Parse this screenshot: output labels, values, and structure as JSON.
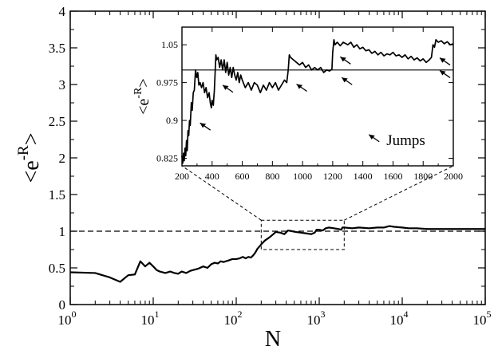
{
  "chart_data": [
    {
      "type": "line",
      "name": "main",
      "xlabel": "N",
      "ylabel_base": "<e",
      "ylabel_sup": "-R",
      "ylabel_end": ">",
      "x_scale": "log",
      "xlim": [
        1,
        100000
      ],
      "ylim": [
        0,
        4
      ],
      "x_ticks": [
        {
          "value": 1,
          "base": "10",
          "exp": "0"
        },
        {
          "value": 10,
          "base": "10",
          "exp": "1"
        },
        {
          "value": 100,
          "base": "10",
          "exp": "2"
        },
        {
          "value": 1000,
          "base": "10",
          "exp": "3"
        },
        {
          "value": 10000,
          "base": "10",
          "exp": "4"
        },
        {
          "value": 100000,
          "base": "10",
          "exp": "5"
        }
      ],
      "y_ticks": [
        {
          "value": 0,
          "label": "0"
        },
        {
          "value": 0.5,
          "label": "0.5"
        },
        {
          "value": 1,
          "label": "1"
        },
        {
          "value": 1.5,
          "label": "1.5"
        },
        {
          "value": 2,
          "label": "2"
        },
        {
          "value": 2.5,
          "label": "2.5"
        },
        {
          "value": 3,
          "label": "3"
        },
        {
          "value": 3.5,
          "label": "3.5"
        },
        {
          "value": 4,
          "label": "4"
        }
      ],
      "reference_line": {
        "y": 1,
        "style": "dashed"
      },
      "zoom_box": {
        "x": [
          200,
          2000
        ],
        "y": [
          0.75,
          1.15
        ]
      },
      "grid": false,
      "series": [
        {
          "points": [
            [
              1,
              0.44
            ],
            [
              2,
              0.43
            ],
            [
              3,
              0.37
            ],
            [
              4,
              0.31
            ],
            [
              5,
              0.4
            ],
            [
              6,
              0.41
            ],
            [
              7,
              0.59
            ],
            [
              8,
              0.52
            ],
            [
              9,
              0.57
            ],
            [
              10,
              0.52
            ],
            [
              11,
              0.47
            ],
            [
              12,
              0.45
            ],
            [
              14,
              0.43
            ],
            [
              16,
              0.45
            ],
            [
              18,
              0.43
            ],
            [
              20,
              0.42
            ],
            [
              22,
              0.45
            ],
            [
              25,
              0.43
            ],
            [
              28,
              0.46
            ],
            [
              30,
              0.47
            ],
            [
              35,
              0.49
            ],
            [
              40,
              0.52
            ],
            [
              45,
              0.5
            ],
            [
              50,
              0.55
            ],
            [
              55,
              0.57
            ],
            [
              60,
              0.56
            ],
            [
              65,
              0.59
            ],
            [
              70,
              0.58
            ],
            [
              80,
              0.6
            ],
            [
              90,
              0.62
            ],
            [
              100,
              0.62
            ],
            [
              110,
              0.63
            ],
            [
              120,
              0.65
            ],
            [
              130,
              0.63
            ],
            [
              140,
              0.65
            ],
            [
              150,
              0.64
            ],
            [
              160,
              0.67
            ],
            [
              170,
              0.71
            ],
            [
              180,
              0.76
            ],
            [
              190,
              0.79
            ],
            [
              200,
              0.82
            ],
            [
              220,
              0.87
            ],
            [
              240,
              0.9
            ],
            [
              260,
              0.93
            ],
            [
              280,
              0.96
            ],
            [
              300,
              0.99
            ],
            [
              340,
              0.98
            ],
            [
              380,
              0.96
            ],
            [
              420,
              1.01
            ],
            [
              470,
              1.0
            ],
            [
              520,
              0.99
            ],
            [
              600,
              0.98
            ],
            [
              700,
              0.97
            ],
            [
              800,
              0.96
            ],
            [
              880,
              0.98
            ],
            [
              930,
              1.02
            ],
            [
              1000,
              1.02
            ],
            [
              1100,
              1.01
            ],
            [
              1200,
              1.04
            ],
            [
              1300,
              1.05
            ],
            [
              1500,
              1.04
            ],
            [
              1700,
              1.03
            ],
            [
              1850,
              1.02
            ],
            [
              1900,
              1.05
            ],
            [
              2000,
              1.05
            ],
            [
              2500,
              1.04
            ],
            [
              3000,
              1.05
            ],
            [
              4000,
              1.04
            ],
            [
              5000,
              1.05
            ],
            [
              6000,
              1.05
            ],
            [
              7000,
              1.07
            ],
            [
              8000,
              1.06
            ],
            [
              10000,
              1.05
            ],
            [
              12000,
              1.04
            ],
            [
              15000,
              1.04
            ],
            [
              20000,
              1.03
            ],
            [
              30000,
              1.03
            ],
            [
              50000,
              1.03
            ],
            [
              70000,
              1.03
            ],
            [
              100000,
              1.03
            ]
          ]
        }
      ]
    },
    {
      "type": "line",
      "name": "inset",
      "ylabel_base": "<e",
      "ylabel_sup": "-R",
      "ylabel_end": ">",
      "xlim": [
        200,
        2000
      ],
      "ylim": [
        0.81,
        1.085
      ],
      "x_ticks": [
        200,
        400,
        600,
        800,
        1000,
        1200,
        1400,
        1600,
        1800,
        2000
      ],
      "y_ticks": [
        "0.825",
        "0.9",
        "0.975",
        "1.05"
      ],
      "reference_line": {
        "y": 1.0,
        "style": "solid"
      },
      "annotation": "Jumps",
      "jump_arrows": [
        {
          "x": 320,
          "y": 0.895
        },
        {
          "x": 470,
          "y": 0.97
        },
        {
          "x": 960,
          "y": 0.972
        },
        {
          "x": 1250,
          "y": 1.026
        },
        {
          "x": 1260,
          "y": 0.985
        },
        {
          "x": 1910,
          "y": 1.024
        },
        {
          "x": 1910,
          "y": 0.999
        }
      ],
      "grid": false,
      "series": [
        {
          "points": [
            [
              200,
              0.83
            ],
            [
              205,
              0.815
            ],
            [
              210,
              0.835
            ],
            [
              215,
              0.82
            ],
            [
              220,
              0.845
            ],
            [
              225,
              0.83
            ],
            [
              230,
              0.86
            ],
            [
              235,
              0.84
            ],
            [
              240,
              0.88
            ],
            [
              245,
              0.87
            ],
            [
              250,
              0.9
            ],
            [
              255,
              0.89
            ],
            [
              262,
              0.935
            ],
            [
              268,
              0.92
            ],
            [
              275,
              0.955
            ],
            [
              282,
              0.96
            ],
            [
              290,
              1.0
            ],
            [
              298,
              0.985
            ],
            [
              305,
              0.995
            ],
            [
              312,
              0.97
            ],
            [
              320,
              0.975
            ],
            [
              330,
              0.965
            ],
            [
              340,
              0.975
            ],
            [
              350,
              0.955
            ],
            [
              360,
              0.965
            ],
            [
              370,
              0.945
            ],
            [
              380,
              0.955
            ],
            [
              388,
              0.935
            ],
            [
              395,
              0.925
            ],
            [
              400,
              0.94
            ],
            [
              408,
              0.93
            ],
            [
              415,
              0.96
            ],
            [
              420,
              0.995
            ],
            [
              425,
              1.03
            ],
            [
              430,
              1.02
            ],
            [
              440,
              1.025
            ],
            [
              450,
              1.005
            ],
            [
              460,
              1.02
            ],
            [
              470,
              1.0
            ],
            [
              480,
              1.02
            ],
            [
              490,
              0.995
            ],
            [
              500,
              1.015
            ],
            [
              510,
              0.99
            ],
            [
              520,
              1.005
            ],
            [
              530,
              0.985
            ],
            [
              540,
              1.005
            ],
            [
              550,
              0.99
            ],
            [
              560,
              0.98
            ],
            [
              570,
              0.995
            ],
            [
              580,
              0.975
            ],
            [
              590,
              0.99
            ],
            [
              600,
              0.98
            ],
            [
              620,
              0.965
            ],
            [
              640,
              0.975
            ],
            [
              660,
              0.96
            ],
            [
              680,
              0.975
            ],
            [
              700,
              0.97
            ],
            [
              720,
              0.955
            ],
            [
              740,
              0.97
            ],
            [
              760,
              0.96
            ],
            [
              780,
              0.975
            ],
            [
              800,
              0.965
            ],
            [
              820,
              0.975
            ],
            [
              840,
              0.96
            ],
            [
              860,
              0.97
            ],
            [
              880,
              0.98
            ],
            [
              895,
              0.975
            ],
            [
              905,
              1.0
            ],
            [
              912,
              1.03
            ],
            [
              920,
              1.025
            ],
            [
              940,
              1.02
            ],
            [
              960,
              1.015
            ],
            [
              980,
              1.01
            ],
            [
              1000,
              1.015
            ],
            [
              1020,
              1.005
            ],
            [
              1040,
              1.01
            ],
            [
              1060,
              1.0
            ],
            [
              1080,
              1.005
            ],
            [
              1100,
              1.0
            ],
            [
              1120,
              1.005
            ],
            [
              1140,
              0.995
            ],
            [
              1160,
              1.0
            ],
            [
              1180,
              0.998
            ],
            [
              1195,
              1.002
            ],
            [
              1200,
              1.035
            ],
            [
              1208,
              1.06
            ],
            [
              1215,
              1.05
            ],
            [
              1230,
              1.055
            ],
            [
              1250,
              1.048
            ],
            [
              1270,
              1.055
            ],
            [
              1300,
              1.05
            ],
            [
              1320,
              1.055
            ],
            [
              1340,
              1.045
            ],
            [
              1360,
              1.05
            ],
            [
              1380,
              1.042
            ],
            [
              1400,
              1.045
            ],
            [
              1420,
              1.038
            ],
            [
              1440,
              1.04
            ],
            [
              1460,
              1.033
            ],
            [
              1480,
              1.037
            ],
            [
              1500,
              1.03
            ],
            [
              1520,
              1.035
            ],
            [
              1540,
              1.028
            ],
            [
              1560,
              1.032
            ],
            [
              1580,
              1.03
            ],
            [
              1600,
              1.035
            ],
            [
              1620,
              1.028
            ],
            [
              1640,
              1.03
            ],
            [
              1660,
              1.025
            ],
            [
              1680,
              1.03
            ],
            [
              1700,
              1.022
            ],
            [
              1720,
              1.027
            ],
            [
              1740,
              1.02
            ],
            [
              1760,
              1.024
            ],
            [
              1780,
              1.018
            ],
            [
              1800,
              1.022
            ],
            [
              1820,
              1.015
            ],
            [
              1840,
              1.02
            ],
            [
              1855,
              1.025
            ],
            [
              1865,
              1.05
            ],
            [
              1875,
              1.045
            ],
            [
              1885,
              1.06
            ],
            [
              1900,
              1.055
            ],
            [
              1920,
              1.058
            ],
            [
              1940,
              1.052
            ],
            [
              1960,
              1.056
            ],
            [
              1980,
              1.05
            ],
            [
              2000,
              1.052
            ]
          ]
        }
      ]
    }
  ]
}
